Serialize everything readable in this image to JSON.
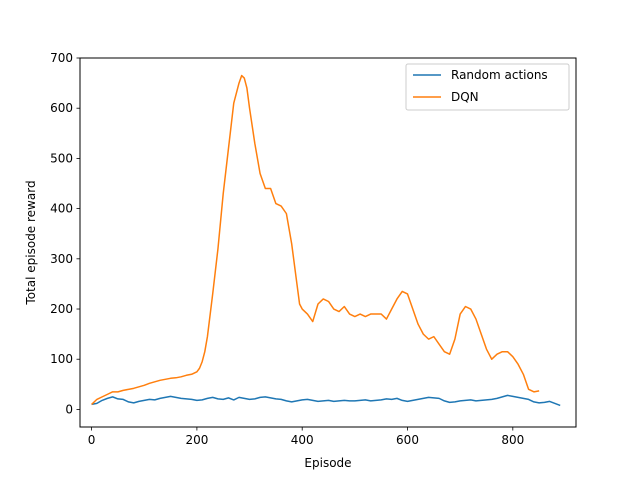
{
  "chart_data": {
    "type": "line",
    "title": "",
    "xlabel": "Episode",
    "ylabel": "Total episode reward",
    "xlim": [
      -22,
      920
    ],
    "ylim": [
      -35,
      700
    ],
    "xticks": [
      0,
      200,
      400,
      600,
      800
    ],
    "yticks": [
      0,
      100,
      200,
      300,
      400,
      500,
      600,
      700
    ],
    "grid": false,
    "legend": {
      "position": "top-right",
      "entries": [
        "Random actions",
        "DQN"
      ]
    },
    "series": [
      {
        "name": "Random actions",
        "color": "#1f77b4",
        "x": [
          0,
          10,
          20,
          30,
          40,
          50,
          60,
          70,
          80,
          90,
          100,
          110,
          120,
          130,
          140,
          150,
          160,
          170,
          180,
          190,
          200,
          210,
          220,
          230,
          240,
          250,
          260,
          270,
          280,
          290,
          300,
          310,
          320,
          330,
          340,
          350,
          360,
          370,
          380,
          390,
          400,
          410,
          420,
          430,
          440,
          450,
          460,
          470,
          480,
          490,
          500,
          510,
          520,
          530,
          540,
          550,
          560,
          570,
          580,
          590,
          600,
          610,
          620,
          630,
          640,
          650,
          660,
          670,
          680,
          690,
          700,
          710,
          720,
          730,
          740,
          750,
          760,
          770,
          780,
          790,
          800,
          810,
          820,
          830,
          840,
          850,
          860,
          870,
          880,
          890
        ],
        "y": [
          10,
          12,
          18,
          22,
          25,
          21,
          20,
          15,
          13,
          16,
          18,
          20,
          19,
          22,
          24,
          26,
          24,
          22,
          21,
          20,
          18,
          19,
          22,
          24,
          21,
          20,
          23,
          19,
          24,
          22,
          20,
          21,
          24,
          25,
          23,
          21,
          20,
          17,
          15,
          17,
          19,
          20,
          18,
          16,
          17,
          18,
          16,
          17,
          18,
          17,
          17,
          18,
          19,
          17,
          18,
          19,
          21,
          20,
          22,
          18,
          16,
          18,
          20,
          22,
          24,
          23,
          22,
          17,
          14,
          15,
          17,
          18,
          19,
          17,
          18,
          19,
          20,
          22,
          25,
          28,
          26,
          24,
          22,
          20,
          15,
          13,
          14,
          16,
          12,
          8
        ]
      },
      {
        "name": "DQN",
        "color": "#ff7f0e",
        "x": [
          0,
          10,
          20,
          30,
          40,
          50,
          60,
          70,
          80,
          90,
          100,
          110,
          120,
          130,
          140,
          150,
          160,
          170,
          180,
          190,
          200,
          205,
          210,
          215,
          220,
          230,
          240,
          250,
          260,
          270,
          280,
          285,
          290,
          295,
          300,
          310,
          320,
          330,
          340,
          350,
          360,
          370,
          380,
          390,
          395,
          400,
          405,
          410,
          420,
          430,
          440,
          450,
          460,
          470,
          480,
          490,
          500,
          510,
          520,
          530,
          540,
          550,
          560,
          570,
          580,
          590,
          600,
          610,
          620,
          630,
          640,
          650,
          660,
          670,
          680,
          690,
          700,
          710,
          720,
          730,
          740,
          750,
          760,
          770,
          780,
          790,
          800,
          810,
          820,
          830,
          840,
          850
        ],
        "y": [
          10,
          20,
          25,
          30,
          35,
          35,
          38,
          40,
          42,
          45,
          48,
          52,
          55,
          58,
          60,
          62,
          63,
          65,
          68,
          70,
          75,
          82,
          95,
          115,
          145,
          230,
          320,
          430,
          520,
          610,
          650,
          665,
          660,
          640,
          600,
          530,
          470,
          440,
          440,
          410,
          405,
          390,
          330,
          250,
          210,
          200,
          195,
          190,
          175,
          210,
          220,
          215,
          200,
          195,
          205,
          190,
          185,
          190,
          185,
          190,
          190,
          190,
          180,
          200,
          220,
          235,
          230,
          200,
          170,
          150,
          140,
          145,
          130,
          115,
          110,
          140,
          190,
          205,
          200,
          180,
          150,
          120,
          100,
          110,
          115,
          115,
          105,
          90,
          70,
          40,
          35,
          37
        ]
      }
    ]
  }
}
